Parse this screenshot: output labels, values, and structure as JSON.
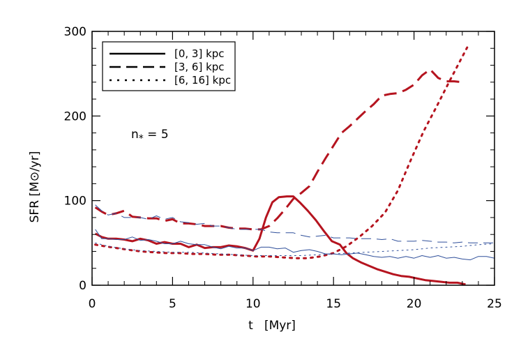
{
  "chart_data": {
    "type": "line",
    "xlabel": "t   [Myr]",
    "ylabel": "SFR  [M⊙/yr]",
    "xlim": [
      0,
      25
    ],
    "ylim": [
      0,
      300
    ],
    "xticks": [
      0,
      5,
      10,
      15,
      20,
      25
    ],
    "yticks": [
      0,
      100,
      200,
      300
    ],
    "annotation": {
      "main": "n",
      "sub": "*",
      "rest": " = 5"
    },
    "legend": {
      "position": "top-left",
      "entries": [
        {
          "label": "[0, 3] kpc",
          "style": "solid"
        },
        {
          "label": "[3, 6] kpc",
          "style": "dashed"
        },
        {
          "label": "[6, 16] kpc",
          "style": "dotted"
        }
      ]
    },
    "series": [
      {
        "group": "[0, 3] kpc",
        "model": "red",
        "color": "#b5141f",
        "style": "solid",
        "width": 3,
        "x": [
          0.2,
          0.6,
          1,
          1.5,
          2,
          2.5,
          3,
          3.5,
          4,
          4.5,
          5,
          5.5,
          6,
          6.5,
          7,
          7.5,
          8,
          8.5,
          9,
          9.5,
          10,
          10.4,
          10.8,
          11.2,
          11.6,
          12.1,
          12.5,
          12.9,
          13.4,
          13.9,
          14.4,
          14.9,
          15.4,
          15.8,
          16.2,
          16.7,
          17.2,
          17.7,
          18.2,
          18.7,
          19.2,
          19.7,
          20.2,
          20.7,
          21.2,
          21.7,
          22.2,
          22.7,
          23.2
        ],
        "y": [
          61,
          57,
          55,
          55,
          54,
          52,
          55,
          53,
          49,
          51,
          49,
          49,
          45,
          48,
          44,
          45,
          45,
          47,
          46,
          44,
          41,
          55,
          80,
          98,
          104,
          105,
          105,
          98,
          88,
          77,
          64,
          52,
          48,
          38,
          32,
          27,
          23,
          19,
          16,
          13,
          11,
          10,
          8,
          6,
          5,
          4,
          3,
          3,
          1
        ]
      },
      {
        "group": "[3, 6] kpc",
        "model": "red",
        "color": "#b5141f",
        "style": "dashed",
        "width": 3,
        "x": [
          0.2,
          0.6,
          1,
          1.5,
          2,
          2.5,
          3,
          3.5,
          4,
          4.5,
          5,
          5.5,
          6,
          6.5,
          7,
          7.5,
          8,
          8.5,
          9,
          9.5,
          10,
          10.5,
          11,
          11.5,
          12,
          12.5,
          13,
          13.5,
          14,
          14.5,
          15,
          15.5,
          16,
          16.5,
          17,
          17.5,
          18,
          18.5,
          19,
          19.5,
          20,
          20.5,
          21,
          21.5,
          22,
          22.5,
          23
        ],
        "y": [
          92,
          87,
          83,
          85,
          88,
          81,
          80,
          79,
          79,
          76,
          78,
          73,
          73,
          72,
          70,
          70,
          70,
          68,
          67,
          67,
          66,
          66,
          70,
          79,
          90,
          102,
          109,
          117,
          134,
          150,
          165,
          180,
          188,
          197,
          206,
          214,
          224,
          226,
          227,
          231,
          237,
          248,
          255,
          245,
          241,
          241,
          240
        ]
      },
      {
        "group": "[6, 16] kpc",
        "model": "red",
        "color": "#b5141f",
        "style": "dotted",
        "width": 3,
        "x": [
          0.2,
          0.8,
          1.5,
          2.2,
          3,
          3.8,
          4.6,
          5.4,
          6.2,
          7,
          7.8,
          8.6,
          9.4,
          10.2,
          11,
          11.8,
          12.6,
          13.4,
          14.2,
          15,
          15.8,
          16.6,
          17.4,
          18.2,
          19,
          19.8,
          20.6,
          21.4,
          22.2,
          23,
          23.3
        ],
        "y": [
          48,
          46,
          44,
          42,
          40,
          39,
          38,
          38,
          37,
          37,
          36,
          36,
          35,
          34,
          34,
          33,
          32,
          32,
          34,
          38,
          46,
          57,
          70,
          86,
          112,
          148,
          182,
          211,
          241,
          270,
          281
        ]
      },
      {
        "group": "[0, 3] kpc",
        "model": "blue",
        "color": "#2f4f9a",
        "style": "solid",
        "width": 1,
        "x": [
          0.2,
          0.6,
          1,
          1.5,
          2,
          2.5,
          3,
          3.5,
          4,
          4.5,
          5,
          5.5,
          6,
          6.5,
          7,
          7.5,
          8,
          8.5,
          9,
          9.5,
          10,
          10.5,
          11,
          11.5,
          12,
          12.5,
          13,
          13.5,
          14,
          14.5,
          15,
          15.5,
          16,
          16.5,
          17,
          17.5,
          18,
          18.5,
          19,
          19.5,
          20,
          20.5,
          21,
          21.5,
          22,
          22.5,
          23,
          23.5,
          24,
          24.5,
          25
        ],
        "y": [
          66,
          55,
          55,
          54,
          54,
          57,
          53,
          54,
          52,
          49,
          49,
          52,
          49,
          48,
          48,
          45,
          43,
          46,
          44,
          44,
          41,
          45,
          45,
          43,
          44,
          39,
          41,
          42,
          40,
          37,
          37,
          36,
          37,
          38,
          36,
          34,
          33,
          34,
          32,
          34,
          32,
          35,
          33,
          35,
          32,
          33,
          31,
          30,
          34,
          34,
          32
        ]
      },
      {
        "group": "[3, 6] kpc",
        "model": "blue",
        "color": "#2f4f9a",
        "style": "dashed",
        "width": 1,
        "x": [
          0.2,
          0.6,
          1,
          1.5,
          2,
          2.5,
          3,
          3.5,
          4,
          4.5,
          5,
          5.5,
          6,
          6.5,
          7,
          7.5,
          8,
          8.5,
          9,
          9.5,
          10,
          10.5,
          11,
          11.5,
          12,
          12.5,
          13,
          13.5,
          14,
          14.5,
          15,
          15.5,
          16,
          16.5,
          17,
          17.5,
          18,
          18.5,
          19,
          19.5,
          20,
          20.5,
          21,
          21.5,
          22,
          22.5,
          23,
          23.5,
          24,
          24.5,
          25
        ],
        "y": [
          95,
          88,
          83,
          85,
          80,
          80,
          80,
          78,
          82,
          78,
          80,
          75,
          74,
          72,
          73,
          70,
          70,
          68,
          66,
          66,
          66,
          66,
          63,
          62,
          62,
          62,
          59,
          57,
          58,
          59,
          56,
          56,
          56,
          55,
          55,
          55,
          54,
          55,
          52,
          52,
          52,
          53,
          52,
          51,
          51,
          50,
          51,
          50,
          50,
          50,
          50
        ]
      },
      {
        "group": "[6, 16] kpc",
        "model": "blue",
        "color": "#2f4f9a",
        "style": "dotted",
        "width": 1,
        "x": [
          0.2,
          1,
          2,
          3,
          4,
          5,
          6,
          7,
          8,
          9,
          10,
          11,
          12,
          13,
          14,
          15,
          16,
          17,
          18,
          19,
          20,
          21,
          22,
          23,
          24,
          25
        ],
        "y": [
          50,
          46,
          43,
          41,
          40,
          39,
          39,
          38,
          37,
          36,
          35,
          35,
          35,
          35,
          36,
          37,
          38,
          39,
          40,
          41,
          42,
          44,
          45,
          46,
          48,
          49
        ]
      }
    ]
  }
}
